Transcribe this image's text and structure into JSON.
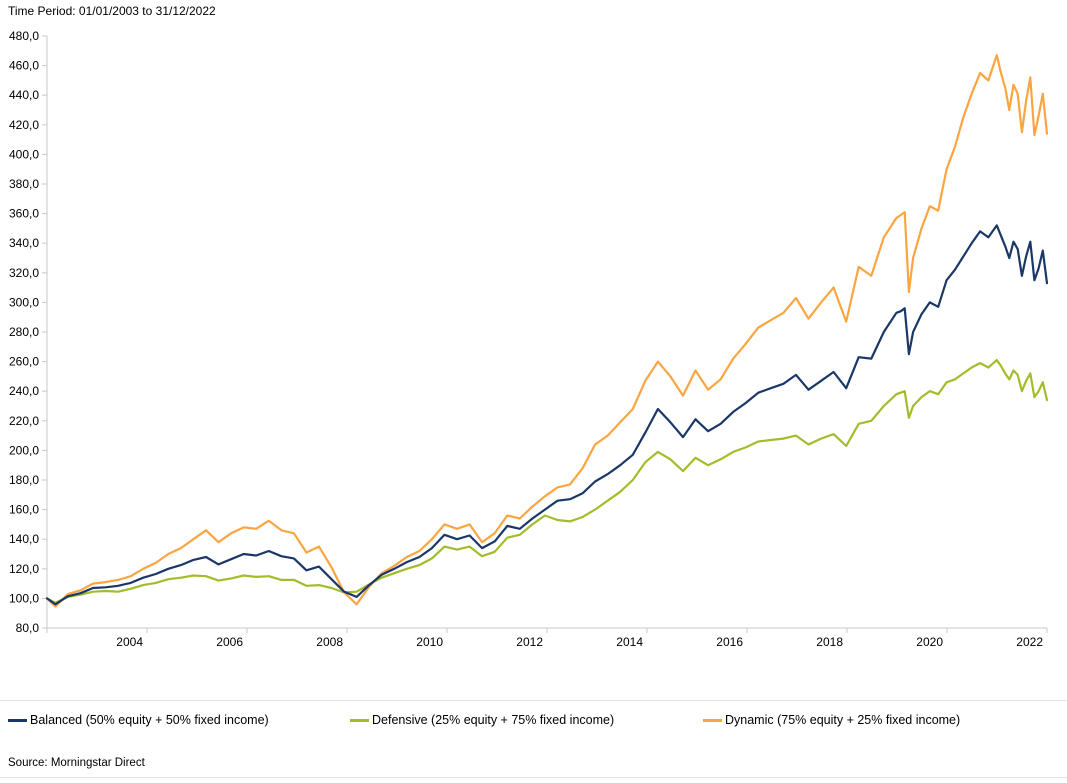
{
  "header": {
    "time_period_label": "Time Period: 01/01/2003 to 31/12/2022"
  },
  "source": {
    "label": "Source: Morningstar Direct"
  },
  "colors": {
    "balanced": "#1b3767",
    "defensive": "#a2bd2a",
    "dynamic": "#faa541",
    "axis": "#c9c9c9",
    "text": "#000000",
    "separator": "#e2e2e2",
    "background": "#ffffff"
  },
  "legend": {
    "items": [
      {
        "id": "balanced",
        "label": "Balanced (50% equity + 50% fixed income)"
      },
      {
        "id": "defensive",
        "label": "Defensive (25% equity + 75% fixed income)"
      },
      {
        "id": "dynamic",
        "label": "Dynamic (75% equity + 25% fixed income)"
      }
    ]
  },
  "chart_data": {
    "type": "line",
    "title": "Time Period: 01/01/2003 to 31/12/2022",
    "xlabel": "",
    "ylabel": "",
    "grid": "off",
    "legend_position": "bottom",
    "x_axis": {
      "unit": "months since 01/01/2003",
      "range_months": [
        0,
        240
      ],
      "tick_months": [
        0,
        24,
        48,
        72,
        96,
        120,
        144,
        168,
        192,
        216,
        240
      ],
      "tick_labels": [
        "",
        "2004",
        "2006",
        "2008",
        "2010",
        "2012",
        "2014",
        "2016",
        "2018",
        "2020",
        "2022"
      ]
    },
    "y_axis": {
      "min": 80,
      "max": 480,
      "tick_step": 20,
      "tick_values": [
        480,
        460,
        440,
        420,
        400,
        380,
        360,
        340,
        320,
        300,
        280,
        260,
        240,
        220,
        200,
        180,
        160,
        140,
        120,
        100,
        80
      ],
      "tick_labels": [
        "480,0",
        "460,0",
        "440,0",
        "420,0",
        "400,0",
        "380,0",
        "360,0",
        "340,0",
        "320,0",
        "300,0",
        "280,0",
        "260,0",
        "240,0",
        "220,0",
        "200,0",
        "180,0",
        "160,0",
        "140,0",
        "120,0",
        "100,0",
        "80,0"
      ]
    },
    "months": [
      0,
      2,
      5,
      8,
      11,
      14,
      17,
      20,
      23,
      26,
      29,
      32,
      35,
      38,
      41,
      44,
      47,
      50,
      53,
      56,
      59,
      62,
      65,
      68,
      71,
      74,
      77,
      80,
      83,
      86,
      89,
      92,
      95,
      98,
      101,
      104,
      107,
      110,
      113,
      116,
      119,
      122,
      125,
      128,
      131,
      134,
      137,
      140,
      143,
      146,
      149,
      152,
      155,
      158,
      161,
      164,
      167,
      170,
      173,
      176,
      179,
      182,
      185,
      188,
      191,
      194,
      197,
      200,
      203,
      204,
      205,
      206,
      207,
      209,
      211,
      213,
      215,
      217,
      219,
      221,
      223,
      225,
      227,
      228,
      229,
      230,
      231,
      232,
      233,
      234,
      235,
      236,
      237,
      238,
      239
    ],
    "series": [
      {
        "name": "Defensive (25% equity + 75% fixed income)",
        "color": "#a2bd2a",
        "values": [
          100,
          97,
          101,
          102.5,
          104.5,
          105,
          104.5,
          106.5,
          109,
          110.5,
          113,
          114,
          115.5,
          115,
          112,
          113.5,
          115.5,
          114.5,
          115,
          112.5,
          112.5,
          108.5,
          109,
          107,
          104,
          104.5,
          109.5,
          114,
          117,
          120,
          122.5,
          127,
          135,
          133,
          135,
          128.5,
          131.5,
          141,
          143,
          150,
          156,
          153,
          152,
          155,
          160,
          166,
          172,
          180,
          192,
          199,
          194,
          186,
          195,
          190,
          194,
          199,
          202,
          206,
          207,
          208,
          210,
          204,
          208,
          211,
          203,
          218,
          220,
          230,
          238,
          239,
          240,
          222,
          230,
          236,
          240,
          238,
          246,
          248,
          252,
          256,
          259,
          256,
          261,
          257,
          252,
          248,
          254,
          251,
          240,
          247,
          252,
          236,
          240,
          246,
          234
        ]
      },
      {
        "name": "Dynamic (75% equity + 25% fixed income)",
        "color": "#faa541",
        "values": [
          100,
          94.5,
          103,
          105.5,
          110,
          111,
          112.5,
          115,
          120,
          124,
          130,
          134,
          140,
          146,
          138,
          144,
          148,
          147,
          152.5,
          146,
          144,
          131,
          135,
          121,
          104,
          96,
          108,
          117,
          122,
          128,
          132,
          140,
          150,
          147,
          150,
          138,
          144,
          156,
          154,
          162,
          169,
          175,
          177,
          188,
          204,
          210,
          219,
          228,
          247,
          260,
          250,
          237,
          254,
          241,
          248,
          262,
          272,
          283,
          288,
          293,
          303,
          289,
          300,
          310,
          287,
          324,
          318,
          344,
          357,
          359,
          361,
          307,
          330,
          350,
          365,
          362,
          390,
          405,
          425,
          441,
          455,
          450,
          467,
          455,
          445,
          430,
          447,
          441,
          415,
          436,
          452,
          413,
          426,
          441,
          414
        ]
      },
      {
        "name": "Balanced (50% equity + 50% fixed income)",
        "color": "#1b3767",
        "values": [
          100,
          96,
          101.5,
          103.5,
          107,
          107.5,
          108.5,
          110.5,
          114,
          116.5,
          120,
          122.5,
          126,
          128,
          123,
          126.5,
          130,
          129,
          132,
          128.5,
          127,
          119,
          121.5,
          113,
          104.5,
          101,
          109,
          116,
          120,
          124.5,
          128,
          134,
          143,
          140,
          142.5,
          134,
          138.5,
          149,
          147,
          154,
          160,
          166,
          167,
          171,
          179,
          184,
          190,
          197,
          212,
          228,
          219,
          209,
          221,
          213,
          218,
          226,
          232,
          239,
          242,
          245,
          251,
          241,
          247,
          253,
          242,
          263,
          262,
          280,
          293,
          294,
          296,
          265,
          280,
          292,
          300,
          297,
          315,
          322,
          331,
          340,
          348,
          344,
          352,
          345,
          338,
          330,
          341,
          336,
          318,
          331,
          341,
          315,
          323,
          335,
          313
        ]
      }
    ]
  }
}
